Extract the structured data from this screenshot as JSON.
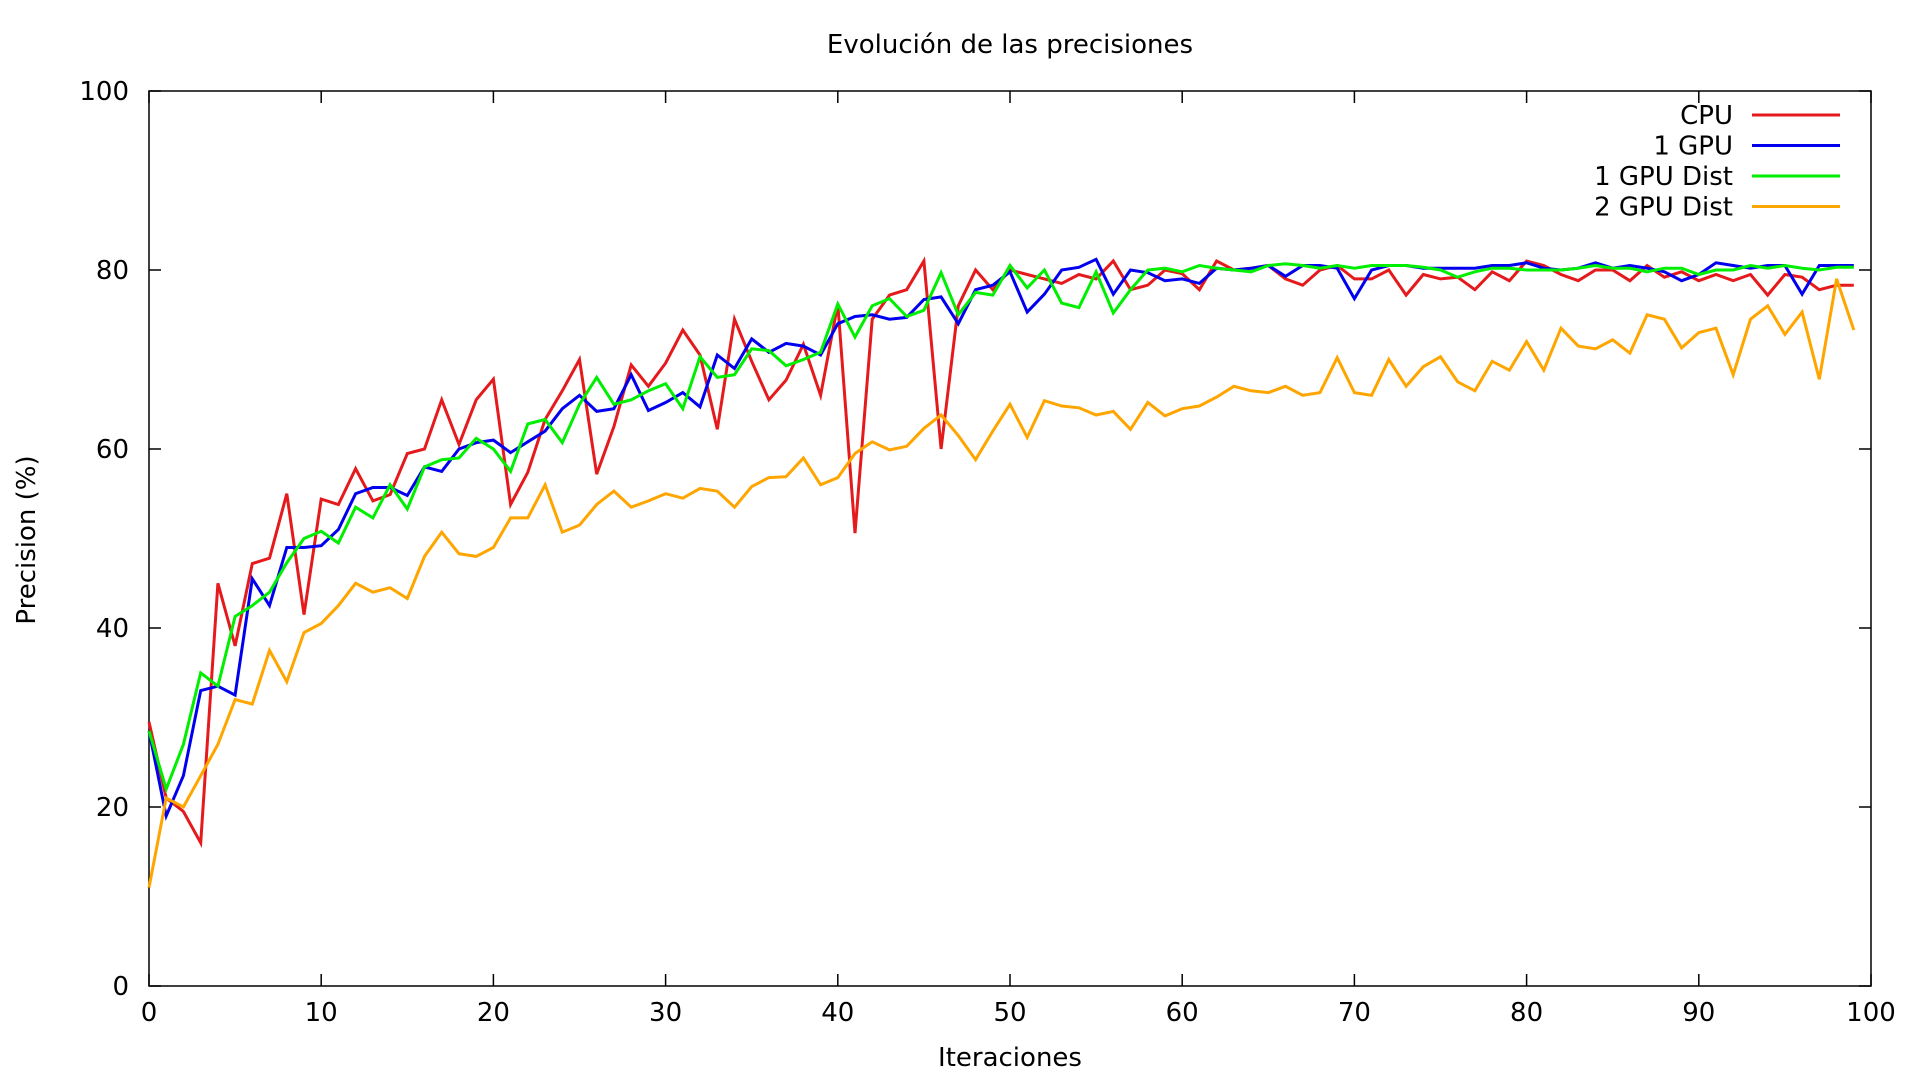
{
  "chart_data": {
    "type": "line",
    "title": "Evolución de las precisiones",
    "xlabel": "Iteraciones",
    "ylabel": "Precision (%)",
    "xlim": [
      0,
      100
    ],
    "ylim": [
      0,
      100
    ],
    "xticks": [
      0,
      10,
      20,
      30,
      40,
      50,
      60,
      70,
      80,
      90,
      100
    ],
    "yticks": [
      0,
      20,
      40,
      60,
      80,
      100
    ],
    "grid": false,
    "legend_position": "top-right",
    "x": [
      0,
      1,
      2,
      3,
      4,
      5,
      6,
      7,
      8,
      9,
      10,
      11,
      12,
      13,
      14,
      15,
      16,
      17,
      18,
      19,
      20,
      21,
      22,
      23,
      24,
      25,
      26,
      27,
      28,
      29,
      30,
      31,
      32,
      33,
      34,
      35,
      36,
      37,
      38,
      39,
      40,
      41,
      42,
      43,
      44,
      45,
      46,
      47,
      48,
      49,
      50,
      51,
      52,
      53,
      54,
      55,
      56,
      57,
      58,
      59,
      60,
      61,
      62,
      63,
      64,
      65,
      66,
      67,
      68,
      69,
      70,
      71,
      72,
      73,
      74,
      75,
      76,
      77,
      78,
      79,
      80,
      81,
      82,
      83,
      84,
      85,
      86,
      87,
      88,
      89,
      90,
      91,
      92,
      93,
      94,
      95,
      96,
      97,
      98,
      99
    ],
    "series": [
      {
        "name": "CPU",
        "color": "#e41a1c",
        "values": [
          29.5,
          21,
          19.5,
          16,
          45,
          38,
          47.2,
          47.8,
          55,
          41.5,
          54.4,
          53.8,
          57.8,
          54.2,
          54.9,
          59.5,
          60,
          65.5,
          60.5,
          65.5,
          67.8,
          53.8,
          57.4,
          63.3,
          66.5,
          70,
          57.2,
          62.5,
          69.4,
          67,
          69.6,
          73.3,
          70.5,
          62.2,
          74.5,
          69.8,
          65.5,
          67.7,
          71.7,
          66,
          76.2,
          50.6,
          74.5,
          77.2,
          77.8,
          81,
          60,
          76,
          80,
          77.8,
          80,
          79.5,
          79,
          78.5,
          79.5,
          79,
          81,
          77.8,
          78.3,
          80,
          79.6,
          77.8,
          81,
          80,
          80.2,
          80.5,
          79,
          78.3,
          80,
          80.5,
          79,
          79,
          80,
          77.2,
          79.5,
          79,
          79.2,
          77.8,
          79.8,
          78.8,
          81,
          80.5,
          79.5,
          78.8,
          80,
          80,
          78.8,
          80.5,
          79.2,
          79.8,
          78.8,
          79.5,
          78.8,
          79.5,
          77.2,
          79.5,
          79.2,
          77.8,
          78.3,
          78.3
        ]
      },
      {
        "name": "1 GPU",
        "color": "#0000ee",
        "values": [
          28.5,
          19,
          23.5,
          33,
          33.5,
          32.5,
          45.5,
          42.5,
          49,
          49,
          49.2,
          51,
          55,
          55.7,
          55.7,
          54.8,
          58,
          57.5,
          60,
          60.7,
          61,
          59.6,
          60.8,
          62,
          64.5,
          66,
          64.2,
          64.5,
          68.3,
          64.3,
          65.2,
          66.3,
          64.7,
          70.5,
          69,
          72.3,
          70.8,
          71.8,
          71.5,
          70.5,
          74,
          74.8,
          75,
          74.5,
          74.7,
          76.7,
          77,
          74,
          77.8,
          78.3,
          79.8,
          75.3,
          77.3,
          80,
          80.3,
          81.2,
          77.3,
          80,
          79.7,
          78.8,
          79,
          78.5,
          80.2,
          80,
          80.2,
          80.5,
          79.3,
          80.5,
          80.5,
          80.2,
          76.8,
          80,
          80.5,
          80.5,
          80.2,
          80.2,
          80.2,
          80.2,
          80.5,
          80.5,
          80.8,
          80.2,
          80,
          80.2,
          80.8,
          80.2,
          80.5,
          80.2,
          79.8,
          78.8,
          79.5,
          80.8,
          80.5,
          80.2,
          80.5,
          80.5,
          77.3,
          80.5,
          80.5,
          80.5
        ]
      },
      {
        "name": "1 GPU Dist",
        "color": "#00ee00",
        "values": [
          28.5,
          22,
          27,
          35,
          33.5,
          41.3,
          42.5,
          44,
          47.3,
          50,
          50.8,
          49.5,
          53.5,
          52.3,
          56,
          53.3,
          58,
          58.8,
          59,
          61.2,
          60,
          57.5,
          62.8,
          63.3,
          60.7,
          65,
          68,
          65,
          65.5,
          66.5,
          67.3,
          64.5,
          70.3,
          68,
          68.3,
          71.2,
          71,
          69.3,
          70,
          70.8,
          76.2,
          72.5,
          76,
          76.8,
          74.8,
          75.5,
          79.7,
          75,
          77.5,
          77.2,
          80.5,
          78,
          80,
          76.3,
          75.8,
          79.8,
          75.2,
          77.8,
          80,
          80.2,
          79.8,
          80.5,
          80.2,
          80,
          79.8,
          80.5,
          80.7,
          80.5,
          80.2,
          80.5,
          80.2,
          80.5,
          80.5,
          80.5,
          80.3,
          80,
          79.2,
          79.8,
          80.2,
          80.2,
          80,
          80,
          80,
          80.2,
          80.5,
          80.2,
          80.2,
          79.8,
          80.2,
          80.2,
          79.5,
          80,
          80,
          80.5,
          80.2,
          80.5,
          80.2,
          80,
          80.3,
          80.3
        ]
      },
      {
        "name": "2 GPU Dist",
        "color": "#ffa500",
        "values": [
          11,
          21,
          20,
          23.5,
          27,
          32,
          31.5,
          37.5,
          34,
          39.5,
          40.5,
          42.5,
          45,
          44,
          44.5,
          43.3,
          48,
          50.7,
          48.3,
          48,
          49,
          52.3,
          52.3,
          56,
          50.7,
          51.5,
          53.8,
          55.3,
          53.5,
          54.2,
          55,
          54.5,
          55.6,
          55.3,
          53.5,
          55.8,
          56.8,
          56.9,
          59,
          56,
          56.8,
          59.5,
          60.8,
          59.9,
          60.3,
          62.3,
          63.8,
          61.5,
          58.8,
          62,
          65,
          61.3,
          65.4,
          64.8,
          64.6,
          63.8,
          64.2,
          62.2,
          65.2,
          63.7,
          64.5,
          64.8,
          65.8,
          67,
          66.5,
          66.3,
          67,
          66,
          66.3,
          70.2,
          66.3,
          66,
          70,
          67,
          69.2,
          70.3,
          67.5,
          66.5,
          69.8,
          68.8,
          72,
          68.8,
          73.5,
          71.5,
          71.2,
          72.2,
          70.7,
          75,
          74.5,
          71.3,
          73,
          73.5,
          68.3,
          74.5,
          76,
          72.8,
          75.3,
          67.8,
          79,
          73.3
        ]
      }
    ]
  }
}
